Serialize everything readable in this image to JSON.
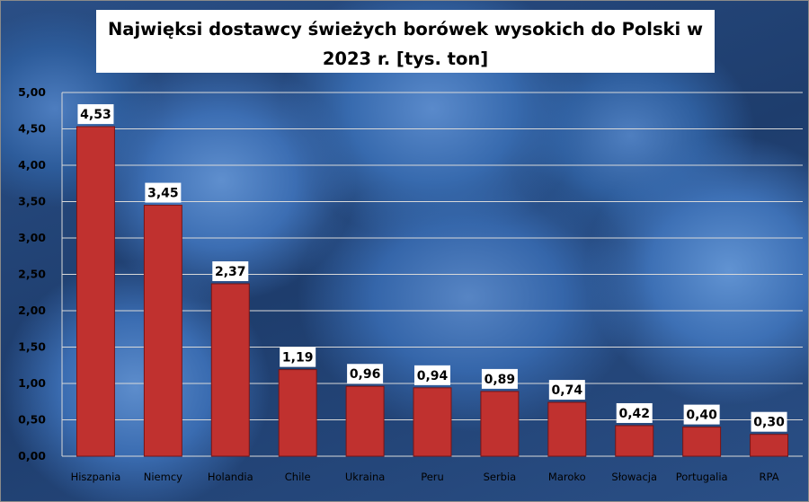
{
  "chart_data": {
    "type": "bar",
    "title": "Najwięksi dostawcy świeżych borówek wysokich do Polski w 2023 r. [tys. ton]",
    "title_lines": [
      "Najwięksi dostawcy świeżych borówek wysokich do Polski w",
      "2023 r. [tys. ton]"
    ],
    "categories": [
      "Hiszpania",
      "Niemcy",
      "Holandia",
      "Chile",
      "Ukraina",
      "Peru",
      "Serbia",
      "Maroko",
      "Słowacja",
      "Portugalia",
      "RPA"
    ],
    "values": [
      4.53,
      3.45,
      2.37,
      1.19,
      0.96,
      0.94,
      0.89,
      0.74,
      0.42,
      0.4,
      0.3
    ],
    "value_labels": [
      "4,53",
      "3,45",
      "2,37",
      "1,19",
      "0,96",
      "0,94",
      "0,89",
      "0,74",
      "0,42",
      "0,40",
      "0,30"
    ],
    "yticks": [
      "0,00",
      "0,50",
      "1,00",
      "1,50",
      "2,00",
      "2,50",
      "3,00",
      "3,50",
      "4,00",
      "4,50",
      "5,00"
    ],
    "ylim": [
      0,
      5
    ],
    "xlabel": "",
    "ylabel": "",
    "grid": true,
    "legend": "none",
    "colors": {
      "bar": "#c0312f",
      "bar_edge": "#7a1414",
      "grid": "#d9d9d9",
      "label_box": "#ffffff"
    }
  }
}
